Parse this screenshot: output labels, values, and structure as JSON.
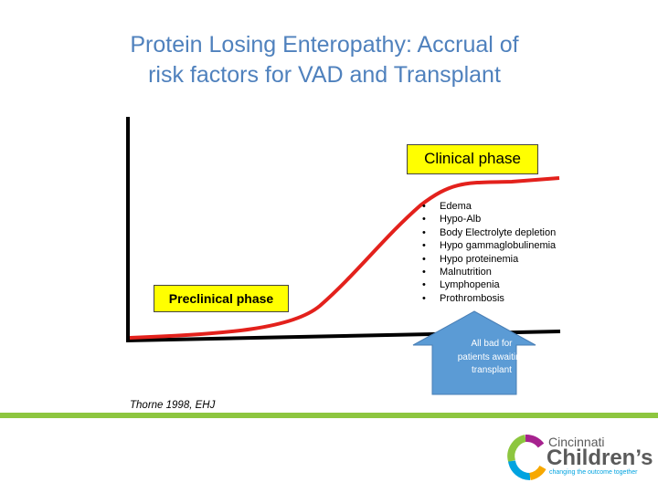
{
  "title": [
    "Protein Losing Enteropathy: Accrual of",
    "risk factors for VAD and Transplant"
  ],
  "diagram": {
    "clinical_label": "Clinical phase",
    "preclinical_label": "Preclinical phase",
    "findings": [
      "Edema",
      "Hypo-Alb",
      "Body Electrolyte depletion",
      "Hypo gammaglobulinemia",
      "Hypo proteinemia",
      "Malnutrition",
      "Lymphopenia",
      "Prothrombosis"
    ],
    "arrow_text": "All bad for patients awaiting transplant"
  },
  "citation": "Thorne 1998, EHJ",
  "logo": {
    "name_top": "Cincinnati",
    "name_main": "Children’s",
    "tagline": "changing the outcome together"
  }
}
